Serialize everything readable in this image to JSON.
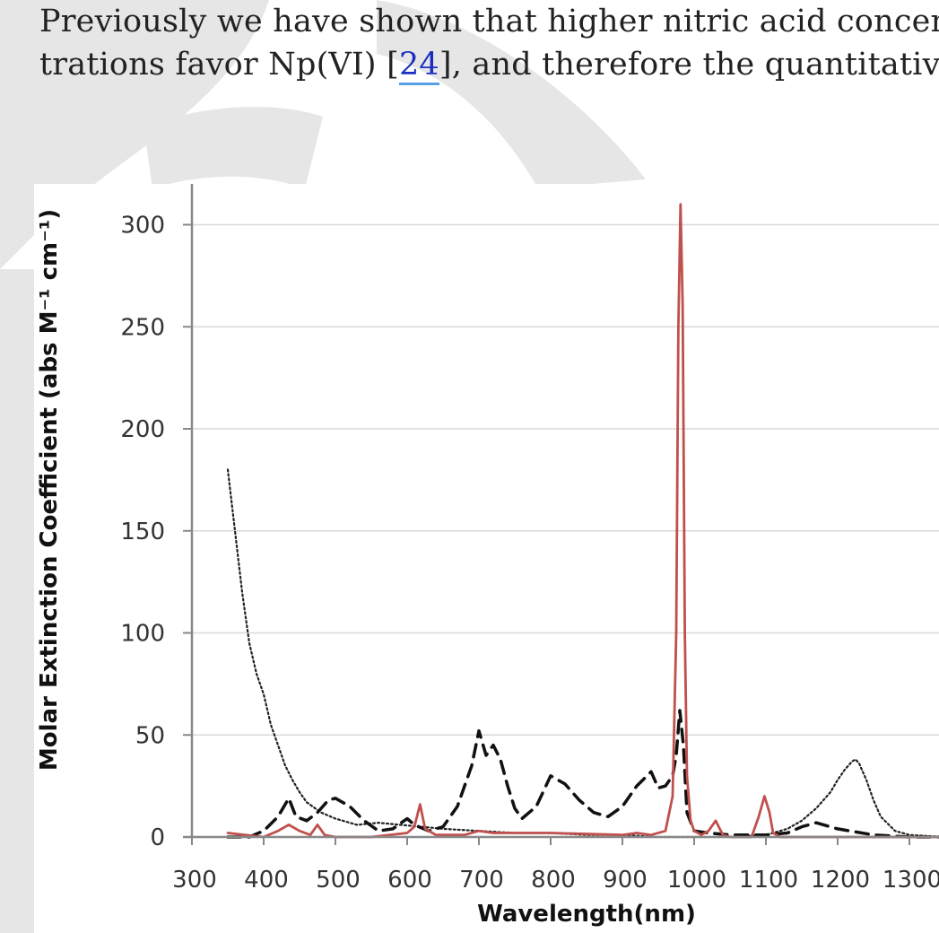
{
  "paragraph": {
    "line1": "Previously we have shown that higher nitric acid concen-",
    "line2_before": "trations favor Np(VI) [",
    "citation": "24",
    "line2_after": "], and therefore the quantitative"
  },
  "chart_data": {
    "type": "line",
    "title": "",
    "xlabel": "Wavelength(nm)",
    "ylabel": "Molar Extinction Coefficient (abs M⁻¹ cm⁻¹)",
    "xlim": [
      300,
      1350
    ],
    "ylim": [
      0,
      310
    ],
    "xticks": [
      300,
      400,
      500,
      600,
      700,
      800,
      900,
      1000,
      1100,
      1200,
      1300
    ],
    "yticks": [
      0,
      50,
      100,
      150,
      200,
      250,
      300
    ],
    "grid": "horizontal",
    "legend": "none",
    "series": [
      {
        "style": "dotted",
        "color": "#222222",
        "x": [
          350,
          360,
          370,
          380,
          390,
          400,
          410,
          420,
          430,
          440,
          450,
          460,
          480,
          500,
          530,
          560,
          590,
          620,
          650,
          700,
          750,
          800,
          850,
          900,
          950,
          1000,
          1050,
          1100,
          1130,
          1150,
          1170,
          1190,
          1200,
          1210,
          1220,
          1225,
          1230,
          1240,
          1250,
          1260,
          1280,
          1300,
          1350
        ],
        "y": [
          180,
          150,
          120,
          95,
          80,
          70,
          55,
          45,
          35,
          28,
          22,
          17,
          12,
          9,
          6,
          7,
          6,
          5,
          4,
          3,
          2,
          2,
          1,
          1,
          0,
          0,
          0,
          1,
          4,
          8,
          14,
          22,
          28,
          33,
          37,
          38,
          36,
          28,
          18,
          10,
          3,
          1,
          0
        ]
      },
      {
        "style": "dashed",
        "color": "#111111",
        "x": [
          350,
          380,
          400,
          420,
          435,
          445,
          460,
          475,
          490,
          500,
          520,
          540,
          560,
          580,
          600,
          610,
          630,
          650,
          670,
          690,
          700,
          710,
          720,
          730,
          740,
          750,
          760,
          780,
          800,
          820,
          840,
          860,
          880,
          900,
          920,
          940,
          950,
          960,
          970,
          975,
          980,
          985,
          990,
          1000,
          1020,
          1050,
          1100,
          1130,
          1150,
          1170,
          1200,
          1250,
          1300,
          1350
        ],
        "y": [
          0,
          0,
          3,
          10,
          19,
          10,
          8,
          12,
          18,
          19,
          15,
          8,
          3,
          4,
          9,
          6,
          3,
          5,
          15,
          35,
          52,
          40,
          45,
          38,
          25,
          14,
          9,
          15,
          30,
          26,
          18,
          12,
          10,
          15,
          25,
          32,
          24,
          25,
          30,
          40,
          62,
          45,
          12,
          3,
          2,
          1,
          1,
          2,
          5,
          7,
          4,
          1,
          0,
          0
        ]
      },
      {
        "style": "solid",
        "color": "#c0504d",
        "x": [
          350,
          400,
          420,
          435,
          450,
          465,
          475,
          485,
          500,
          550,
          600,
          610,
          618,
          625,
          640,
          680,
          700,
          720,
          800,
          900,
          920,
          940,
          960,
          970,
          975,
          978,
          981,
          984,
          987,
          990,
          995,
          1000,
          1010,
          1020,
          1030,
          1040,
          1050,
          1080,
          1090,
          1098,
          1105,
          1110,
          1120,
          1150,
          1200,
          1300,
          1350
        ],
        "y": [
          2,
          0,
          3,
          6,
          3,
          1,
          6,
          1,
          0,
          0,
          2,
          5,
          16,
          4,
          1,
          1,
          3,
          2,
          2,
          1,
          2,
          1,
          3,
          20,
          100,
          250,
          310,
          260,
          100,
          30,
          8,
          3,
          1,
          3,
          8,
          1,
          0,
          0,
          10,
          20,
          12,
          2,
          0,
          0,
          0,
          0,
          0
        ]
      }
    ]
  }
}
